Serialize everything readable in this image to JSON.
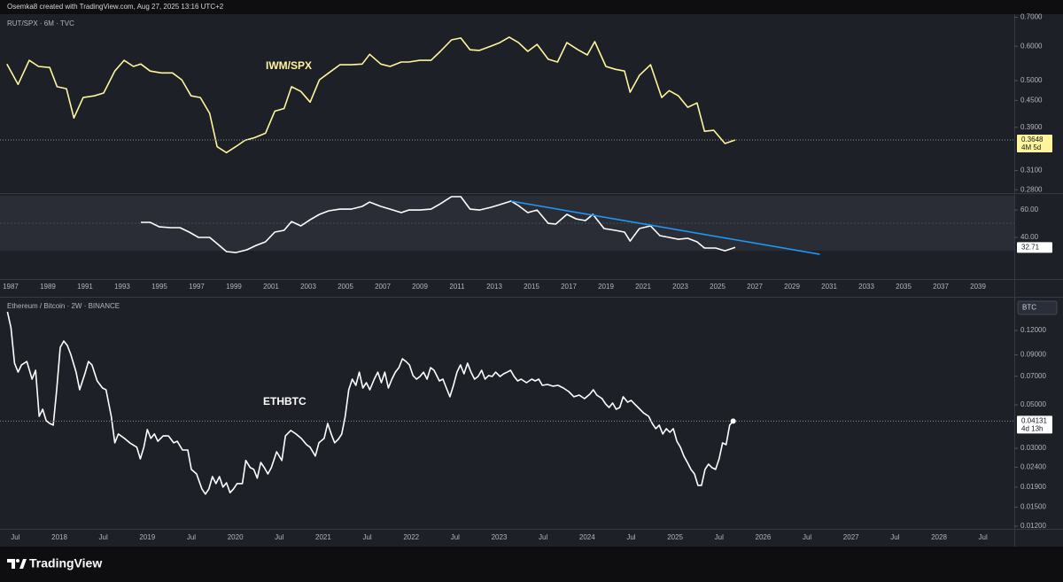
{
  "header": "Osemka8 created with TradingView.com, Aug 27, 2025 13:16 UTC+2",
  "branding": "TradingView",
  "chart_data": [
    {
      "type": "line",
      "title": "RUT/SPX · 6M · TVC",
      "annotation": "IWM/SPX",
      "log_scale": true,
      "price_line": true,
      "countdown": "4M 5d",
      "xlim": [
        1986.43,
        2040.95
      ],
      "xticks": [
        1987,
        1989,
        1991,
        1993,
        1995,
        1997,
        1999,
        2001,
        2003,
        2005,
        2007,
        2009,
        2011,
        2013,
        2015,
        2017,
        2019,
        2021,
        2023,
        2025,
        2027,
        2029,
        2031,
        2033,
        2035,
        2037,
        2039
      ],
      "ylim": [
        0.275,
        0.705
      ],
      "yticks": [
        {
          "value": 0.7,
          "label": "0.7000"
        },
        {
          "value": 0.6,
          "label": "0.6000"
        },
        {
          "value": 0.5,
          "label": "0.5000"
        },
        {
          "value": 0.45,
          "label": "0.4500"
        },
        {
          "value": 0.39,
          "label": "0.3900"
        },
        {
          "value": 0.31,
          "label": "0.3100"
        },
        {
          "value": 0.28,
          "label": "0.2800"
        }
      ],
      "series": [
        {
          "color": "#fff59d",
          "x": [
            1986.8,
            1987.4,
            1988.0,
            1988.5,
            1989.1,
            1989.5,
            1990.0,
            1990.4,
            1990.9,
            1991.5,
            1992.0,
            1992.6,
            1993.1,
            1993.6,
            1994.0,
            1994.5,
            1995.1,
            1995.7,
            1996.2,
            1996.7,
            1997.2,
            1997.7,
            1998.1,
            1998.6,
            1999.1,
            1999.6,
            2000.1,
            2000.7,
            2001.2,
            2001.7,
            2002.1,
            2002.6,
            2003.1,
            2003.6,
            2004.1,
            2004.7,
            2005.3,
            2005.9,
            2006.3,
            2006.9,
            2007.4,
            2008.0,
            2008.4,
            2009.0,
            2009.6,
            2010.1,
            2010.7,
            2011.2,
            2011.7,
            2012.2,
            2012.8,
            2013.3,
            2013.8,
            2014.3,
            2014.8,
            2015.3,
            2015.9,
            2016.4,
            2016.9,
            2017.5,
            2018.0,
            2018.4,
            2019.0,
            2019.5,
            2020.0,
            2020.3,
            2020.8,
            2021.4,
            2022.0,
            2022.4,
            2022.9,
            2023.4,
            2023.9,
            2024.3,
            2024.8,
            2025.4,
            2025.95
          ],
          "values": [
            0.546,
            0.49,
            0.557,
            0.539,
            0.536,
            0.484,
            0.479,
            0.41,
            0.457,
            0.461,
            0.468,
            0.526,
            0.557,
            0.539,
            0.546,
            0.526,
            0.521,
            0.521,
            0.502,
            0.461,
            0.457,
            0.42,
            0.352,
            0.341,
            0.352,
            0.364,
            0.369,
            0.378,
            0.425,
            0.431,
            0.484,
            0.472,
            0.446,
            0.502,
            0.521,
            0.544,
            0.544,
            0.546,
            0.575,
            0.546,
            0.539,
            0.552,
            0.552,
            0.557,
            0.557,
            0.584,
            0.621,
            0.627,
            0.589,
            0.587,
            0.6,
            0.612,
            0.63,
            0.612,
            0.584,
            0.606,
            0.56,
            0.552,
            0.612,
            0.589,
            0.573,
            0.615,
            0.539,
            0.531,
            0.526,
            0.47,
            0.514,
            0.544,
            0.457,
            0.474,
            0.461,
            0.434,
            0.444,
            0.382,
            0.384,
            0.358,
            0.3648
          ]
        }
      ]
    },
    {
      "type": "line",
      "log_scale": false,
      "ylim": [
        9.7,
        72.3
      ],
      "yticks": [
        {
          "value": 60,
          "label": "60.00"
        },
        {
          "value": 40,
          "label": "40.00"
        }
      ],
      "series": [
        {
          "color": "#ffffff",
          "x": [
            1994.0,
            1994.5,
            1995.0,
            1995.6,
            1996.1,
            1996.6,
            1997.1,
            1997.7,
            1998.1,
            1998.6,
            1999.1,
            1999.7,
            2000.2,
            2000.7,
            2001.2,
            2001.7,
            2002.1,
            2002.6,
            2003.1,
            2003.6,
            2004.1,
            2004.7,
            2005.3,
            2005.9,
            2006.3,
            2006.9,
            2007.4,
            2008.0,
            2008.4,
            2009.0,
            2009.6,
            2010.1,
            2010.7,
            2011.2,
            2011.7,
            2012.2,
            2012.8,
            2013.3,
            2013.9,
            2014.3,
            2014.8,
            2015.3,
            2015.9,
            2016.3,
            2016.9,
            2017.4,
            2017.9,
            2018.3,
            2018.9,
            2019.5,
            2020.0,
            2020.3,
            2020.8,
            2021.4,
            2021.9,
            2022.4,
            2022.9,
            2023.4,
            2023.9,
            2024.3,
            2024.9,
            2025.4,
            2025.95
          ],
          "values": [
            51.0,
            51.0,
            47.7,
            47.1,
            47.1,
            43.9,
            40.0,
            40.0,
            35.5,
            29.7,
            29.0,
            31.0,
            34.2,
            36.8,
            43.9,
            45.2,
            51.6,
            48.4,
            52.9,
            56.8,
            59.4,
            60.6,
            60.6,
            62.6,
            65.8,
            62.6,
            60.6,
            58.1,
            60.0,
            60.0,
            60.6,
            64.5,
            69.7,
            69.7,
            60.6,
            60.0,
            61.9,
            63.9,
            66.5,
            63.2,
            58.1,
            60.0,
            50.3,
            49.7,
            56.8,
            53.5,
            52.3,
            56.8,
            46.5,
            45.2,
            43.9,
            37.4,
            46.5,
            48.4,
            41.3,
            40.0,
            38.7,
            39.4,
            36.8,
            32.3,
            32.3,
            30.3,
            32.71
          ]
        },
        {
          "color": "#2196f3",
          "x": [
            2013.9,
            2030.5
          ],
          "values": [
            66.5,
            27.7
          ]
        }
      ]
    },
    {
      "type": "line",
      "title": "Ethereum / Bitcoin · 2W · BINANCE",
      "annotation": "ETHBTC",
      "log_scale": true,
      "price_line": true,
      "currency": "BTC",
      "countdown": "4d 13h",
      "xlim": [
        2017.325,
        2028.856
      ],
      "xticks": [
        {
          "value": 2017.5,
          "label": "Jul"
        },
        2018,
        {
          "value": 2018.5,
          "label": "Jul"
        },
        2019,
        {
          "value": 2019.5,
          "label": "Jul"
        },
        2020,
        {
          "value": 2020.5,
          "label": "Jul"
        },
        2021,
        {
          "value": 2021.5,
          "label": "Jul"
        },
        2022,
        {
          "value": 2022.5,
          "label": "Jul"
        },
        2023,
        {
          "value": 2023.5,
          "label": "Jul"
        },
        2024,
        {
          "value": 2024.5,
          "label": "Jul"
        },
        2025,
        {
          "value": 2025.5,
          "label": "Jul"
        },
        2026,
        {
          "value": 2026.5,
          "label": "Jul"
        },
        2027,
        {
          "value": 2027.5,
          "label": "Jul"
        },
        2028,
        {
          "value": 2028.5,
          "label": "Jul"
        }
      ],
      "ylim": [
        0.01163,
        0.1765
      ],
      "yticks": [
        {
          "value": 0.12,
          "label": "0.12000"
        },
        {
          "value": 0.09,
          "label": "0.09000"
        },
        {
          "value": 0.07,
          "label": "0.07000"
        },
        {
          "value": 0.05,
          "label": "0.05000"
        },
        {
          "value": 0.03,
          "label": "0.03000"
        },
        {
          "value": 0.024,
          "label": "0.02400"
        },
        {
          "value": 0.019,
          "label": "0.01900"
        },
        {
          "value": 0.015,
          "label": "0.01500"
        },
        {
          "value": 0.012,
          "label": "0.01200"
        }
      ],
      "series": [
        {
          "color": "#ffffff",
          "x": [
            2017.41,
            2017.45,
            2017.49,
            2017.53,
            2017.57,
            2017.63,
            2017.69,
            2017.73,
            2017.77,
            2017.81,
            2017.85,
            2017.89,
            2017.93,
            2017.97,
            2018.01,
            2018.05,
            2018.09,
            2018.13,
            2018.19,
            2018.23,
            2018.29,
            2018.33,
            2018.37,
            2018.43,
            2018.49,
            2018.53,
            2018.59,
            2018.63,
            2018.67,
            2018.74,
            2018.8,
            2018.88,
            2018.92,
            2018.96,
            2019.0,
            2019.04,
            2019.08,
            2019.12,
            2019.18,
            2019.24,
            2019.3,
            2019.34,
            2019.4,
            2019.46,
            2019.5,
            2019.56,
            2019.62,
            2019.66,
            2019.7,
            2019.74,
            2019.78,
            2019.82,
            2019.86,
            2019.9,
            2019.94,
            2019.98,
            2020.02,
            2020.08,
            2020.12,
            2020.17,
            2020.21,
            2020.25,
            2020.29,
            2020.33,
            2020.37,
            2020.41,
            2020.47,
            2020.53,
            2020.57,
            2020.63,
            2020.69,
            2020.75,
            2020.81,
            2020.85,
            2020.91,
            2020.95,
            2021.01,
            2021.05,
            2021.09,
            2021.13,
            2021.17,
            2021.21,
            2021.25,
            2021.29,
            2021.33,
            2021.37,
            2021.41,
            2021.45,
            2021.49,
            2021.53,
            2021.58,
            2021.62,
            2021.66,
            2021.7,
            2021.74,
            2021.78,
            2021.82,
            2021.86,
            2021.9,
            2021.94,
            2021.98,
            2022.02,
            2022.06,
            2022.1,
            2022.14,
            2022.18,
            2022.22,
            2022.26,
            2022.32,
            2022.36,
            2022.4,
            2022.44,
            2022.48,
            2022.52,
            2022.56,
            2022.6,
            2022.64,
            2022.68,
            2022.72,
            2022.76,
            2022.8,
            2022.84,
            2022.88,
            2022.92,
            2022.96,
            2023.01,
            2023.05,
            2023.09,
            2023.13,
            2023.17,
            2023.21,
            2023.25,
            2023.31,
            2023.37,
            2023.41,
            2023.45,
            2023.49,
            2023.55,
            2023.61,
            2023.67,
            2023.73,
            2023.79,
            2023.85,
            2023.91,
            2023.97,
            2024.03,
            2024.07,
            2024.11,
            2024.17,
            2024.21,
            2024.25,
            2024.29,
            2024.33,
            2024.37,
            2024.41,
            2024.46,
            2024.5,
            2024.54,
            2024.58,
            2024.64,
            2024.7,
            2024.74,
            2024.78,
            2024.82,
            2024.86,
            2024.9,
            2024.94,
            2024.98,
            2025.02,
            2025.06,
            2025.1,
            2025.14,
            2025.18,
            2025.22,
            2025.26,
            2025.3,
            2025.34,
            2025.38,
            2025.42,
            2025.46,
            2025.5,
            2025.54,
            2025.58,
            2025.62,
            2025.66
          ],
          "values": [
            0.1494,
            0.1238,
            0.0816,
            0.0735,
            0.08,
            0.0833,
            0.0677,
            0.0751,
            0.0437,
            0.0475,
            0.0415,
            0.0402,
            0.0394,
            0.0597,
            0.0984,
            0.1059,
            0.1005,
            0.0906,
            0.0735,
            0.0597,
            0.072,
            0.0833,
            0.08,
            0.0663,
            0.061,
            0.0597,
            0.0437,
            0.032,
            0.0355,
            0.0337,
            0.032,
            0.0304,
            0.0265,
            0.0304,
            0.0374,
            0.0337,
            0.0355,
            0.0326,
            0.0347,
            0.0347,
            0.032,
            0.0326,
            0.0294,
            0.0294,
            0.0234,
            0.0222,
            0.0186,
            0.0175,
            0.0186,
            0.0215,
            0.0198,
            0.0215,
            0.019,
            0.02,
            0.0178,
            0.0186,
            0.0198,
            0.0198,
            0.026,
            0.0239,
            0.0234,
            0.0211,
            0.0254,
            0.0239,
            0.0222,
            0.0239,
            0.0288,
            0.026,
            0.0347,
            0.037,
            0.0355,
            0.0337,
            0.0313,
            0.0304,
            0.0274,
            0.032,
            0.0337,
            0.0402,
            0.0355,
            0.032,
            0.0333,
            0.0355,
            0.0437,
            0.0597,
            0.0677,
            0.0629,
            0.0735,
            0.061,
            0.0649,
            0.0597,
            0.0677,
            0.0735,
            0.0649,
            0.0735,
            0.061,
            0.0677,
            0.0735,
            0.0775,
            0.086,
            0.0833,
            0.08,
            0.0706,
            0.0677,
            0.0698,
            0.0735,
            0.0677,
            0.0775,
            0.0751,
            0.0663,
            0.0677,
            0.061,
            0.055,
            0.0629,
            0.0735,
            0.08,
            0.072,
            0.0816,
            0.0735,
            0.0677,
            0.0698,
            0.0751,
            0.0677,
            0.0706,
            0.0698,
            0.0735,
            0.0698,
            0.072,
            0.0735,
            0.0751,
            0.0698,
            0.0663,
            0.0677,
            0.0649,
            0.0677,
            0.0663,
            0.0677,
            0.0629,
            0.0636,
            0.0623,
            0.0629,
            0.061,
            0.0585,
            0.055,
            0.0561,
            0.0538,
            0.0567,
            0.0597,
            0.0561,
            0.0538,
            0.0505,
            0.0485,
            0.0511,
            0.0475,
            0.0485,
            0.055,
            0.0516,
            0.0527,
            0.0505,
            0.0485,
            0.0455,
            0.0437,
            0.0402,
            0.0378,
            0.0394,
            0.0355,
            0.0378,
            0.0362,
            0.0378,
            0.0326,
            0.0304,
            0.0274,
            0.0254,
            0.0234,
            0.0222,
            0.0194,
            0.0194,
            0.0234,
            0.0249,
            0.0239,
            0.0234,
            0.0265,
            0.032,
            0.0313,
            0.0394,
            0.04131
          ]
        }
      ]
    }
  ]
}
